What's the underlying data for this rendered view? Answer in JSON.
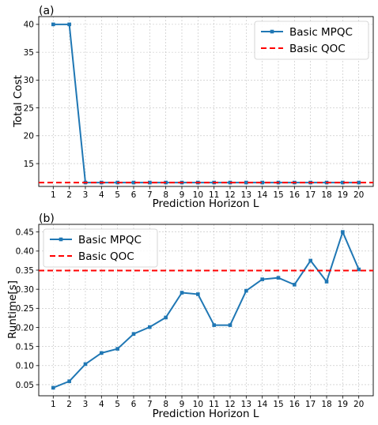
{
  "chart_data": [
    {
      "type": "line",
      "panel_label": "(a)",
      "xlabel": "Prediction Horizon L",
      "ylabel": "Total Cost",
      "x": [
        1,
        2,
        3,
        4,
        5,
        6,
        7,
        8,
        9,
        10,
        11,
        12,
        13,
        14,
        15,
        16,
        17,
        18,
        19,
        20
      ],
      "xlim": [
        0.1,
        20.9
      ],
      "ylim": [
        10.9,
        41.4
      ],
      "yticks": [
        15,
        20,
        25,
        30,
        35,
        40
      ],
      "grid": true,
      "legend_position": "top-right",
      "series": [
        {
          "name": "Basic MPQC",
          "color": "#1f77b4",
          "style": "solid-square-markers",
          "values": [
            40,
            40,
            11.6,
            11.6,
            11.6,
            11.6,
            11.6,
            11.6,
            11.6,
            11.6,
            11.6,
            11.6,
            11.6,
            11.6,
            11.6,
            11.6,
            11.6,
            11.6,
            11.6,
            11.6
          ]
        },
        {
          "name": "Basic QOC",
          "color": "#ff0000",
          "style": "dashed-horizontal",
          "value": 11.6
        }
      ]
    },
    {
      "type": "line",
      "panel_label": "(b)",
      "xlabel": "Prediction Horizon L",
      "ylabel": "Runtime[s]",
      "x": [
        1,
        2,
        3,
        4,
        5,
        6,
        7,
        8,
        9,
        10,
        11,
        12,
        13,
        14,
        15,
        16,
        17,
        18,
        19,
        20
      ],
      "xlim": [
        0.1,
        20.9
      ],
      "ylim": [
        0.021,
        0.47
      ],
      "yticks": [
        0.05,
        0.1,
        0.15,
        0.2,
        0.25,
        0.3,
        0.35,
        0.4,
        0.45
      ],
      "ytick_labels": [
        "0.05",
        "0.10",
        "0.15",
        "0.20",
        "0.25",
        "0.30",
        "0.35",
        "0.40",
        "0.45"
      ],
      "grid": true,
      "legend_position": "top-left",
      "series": [
        {
          "name": "Basic MPQC",
          "color": "#1f77b4",
          "style": "solid-square-markers",
          "values": [
            0.042,
            0.059,
            0.104,
            0.133,
            0.144,
            0.183,
            0.201,
            0.226,
            0.291,
            0.287,
            0.206,
            0.206,
            0.296,
            0.326,
            0.33,
            0.312,
            0.375,
            0.32,
            0.45,
            0.352
          ]
        },
        {
          "name": "Basic QOC",
          "color": "#ff0000",
          "style": "dashed-horizontal",
          "value": 0.349
        }
      ]
    }
  ]
}
